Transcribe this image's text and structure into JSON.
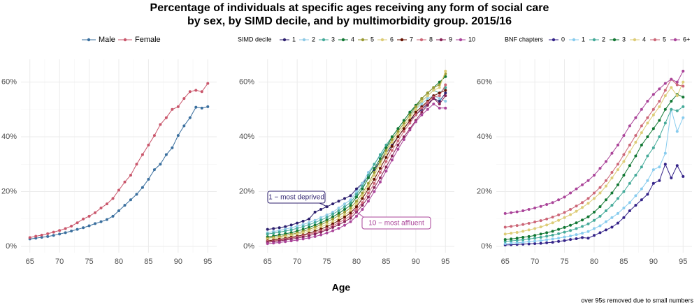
{
  "title": [
    "Percentage of individuals at specific ages receiving any form of social care",
    "by sex, by SIMD decile, and by multimorbidity group. 2015/16"
  ],
  "xlabel": "Age",
  "note": "over 95s removed due to small numbers",
  "chart_data": [
    {
      "type": "line",
      "x": [
        65,
        66,
        67,
        68,
        69,
        70,
        71,
        72,
        73,
        74,
        75,
        76,
        77,
        78,
        79,
        80,
        81,
        82,
        83,
        84,
        85,
        86,
        87,
        88,
        89,
        90,
        91,
        92,
        93,
        94,
        95
      ],
      "xlim": [
        63.5,
        96.5
      ],
      "xticks": [
        65,
        70,
        75,
        80,
        85,
        90,
        95
      ],
      "xticks_minor": [
        67.5,
        72.5,
        77.5,
        82.5,
        87.5,
        92.5
      ],
      "ylim": [
        -2.3,
        68.3
      ],
      "yticks": [
        {
          "value": 0,
          "label": "0%"
        },
        {
          "value": 20,
          "label": "20%"
        },
        {
          "value": 40,
          "label": "40%"
        },
        {
          "value": 60,
          "label": "60%"
        }
      ],
      "yticks_minor": [
        10,
        30,
        50
      ],
      "grid": true,
      "legend": "top",
      "series": [
        {
          "name": "Male",
          "color": "#3a6f9e",
          "values": [
            2.7,
            3,
            3.3,
            3.6,
            4,
            4.5,
            5,
            5.6,
            6.2,
            6.8,
            7.5,
            8.3,
            9,
            9.8,
            11,
            13,
            15,
            17,
            19,
            21.5,
            24.5,
            28,
            30,
            33.5,
            36,
            40.5,
            44,
            47,
            50.8,
            50.5,
            51
          ]
        },
        {
          "name": "Female",
          "color": "#c9566b",
          "values": [
            3.2,
            3.7,
            4.1,
            4.6,
            5.2,
            5.8,
            6.5,
            7.4,
            8.6,
            10,
            11,
            12.3,
            14,
            15.5,
            17.5,
            20.5,
            23.5,
            26,
            30,
            33.5,
            37,
            40.5,
            44.5,
            47,
            50,
            51,
            54,
            56.5,
            57,
            56.5,
            59.5
          ]
        }
      ]
    },
    {
      "type": "line",
      "x": [
        65,
        66,
        67,
        68,
        69,
        70,
        71,
        72,
        73,
        74,
        75,
        76,
        77,
        78,
        79,
        80,
        81,
        82,
        83,
        84,
        85,
        86,
        87,
        88,
        89,
        90,
        91,
        92,
        93,
        94,
        95
      ],
      "xlim": [
        63.5,
        96.5
      ],
      "xticks": [
        65,
        70,
        75,
        80,
        85,
        90,
        95
      ],
      "xticks_minor": [
        67.5,
        72.5,
        77.5,
        82.5,
        87.5,
        92.5
      ],
      "ylim": [
        -2.3,
        68.3
      ],
      "yticks": [
        {
          "value": 0,
          "label": "0%"
        },
        {
          "value": 20,
          "label": "20%"
        },
        {
          "value": 40,
          "label": "40%"
        },
        {
          "value": 60,
          "label": "60%"
        }
      ],
      "yticks_minor": [
        10,
        30,
        50
      ],
      "grid": true,
      "legend": "top",
      "legend_title": "SIMD decile",
      "annotations": [
        {
          "text": "1 − most deprived",
          "color": "#2c1f6e"
        },
        {
          "text": "10 − most affluent",
          "color": "#aa4499"
        }
      ],
      "series": [
        {
          "name": "1",
          "color": "#2c1f6e",
          "values": [
            6.2,
            6.5,
            6.8,
            7.2,
            7.8,
            8.5,
            9.2,
            10,
            12.5,
            13.5,
            14.5,
            15.5,
            16.5,
            17.5,
            18.5,
            21,
            23,
            25.5,
            28,
            31,
            34,
            37,
            40,
            43,
            46,
            48,
            50,
            52,
            54,
            53,
            56
          ]
        },
        {
          "name": "2",
          "color": "#8ecae6",
          "values": [
            5,
            5.4,
            5.8,
            6.3,
            6.8,
            7.4,
            8,
            8.7,
            9.5,
            10.5,
            11.5,
            12.5,
            14,
            15.5,
            17,
            20,
            23,
            27,
            30,
            33,
            36,
            39,
            42,
            45,
            48,
            50,
            52,
            54,
            55,
            54,
            53
          ]
        },
        {
          "name": "3",
          "color": "#44aa99",
          "values": [
            4.5,
            4.8,
            5.2,
            5.6,
            6,
            6.6,
            7.2,
            7.9,
            8.7,
            9.6,
            10.6,
            11.8,
            13,
            14.5,
            16,
            19,
            22,
            26,
            30,
            33.5,
            37,
            40,
            43,
            46,
            49,
            51,
            53,
            55,
            57,
            56,
            58
          ]
        },
        {
          "name": "4",
          "color": "#117733",
          "values": [
            3.5,
            3.8,
            4.2,
            4.6,
            5,
            5.6,
            6.2,
            6.9,
            7.7,
            8.6,
            9.6,
            10.8,
            12,
            13.5,
            15,
            18,
            21,
            25,
            28.5,
            32,
            36,
            40,
            43,
            46,
            49,
            51.5,
            54,
            56,
            58,
            60,
            62
          ]
        },
        {
          "name": "5",
          "color": "#999933",
          "values": [
            3,
            3.3,
            3.6,
            4,
            4.4,
            4.9,
            5.5,
            6.2,
            7,
            7.9,
            8.9,
            10,
            11.2,
            12.5,
            14,
            16.5,
            19.5,
            23,
            27,
            31,
            35,
            39,
            42,
            45,
            48,
            51,
            54,
            56,
            58,
            59,
            63
          ]
        },
        {
          "name": "6",
          "color": "#ddcc77",
          "values": [
            2.5,
            2.8,
            3.1,
            3.5,
            3.9,
            4.4,
            5,
            5.6,
            6.3,
            7.1,
            8,
            9,
            10.2,
            11.5,
            13,
            15.5,
            18.5,
            22,
            26,
            30,
            34,
            38,
            41,
            44,
            47,
            50,
            53,
            55,
            57,
            58,
            64
          ]
        },
        {
          "name": "7",
          "color": "#661100",
          "values": [
            2,
            2.3,
            2.6,
            2.9,
            3.3,
            3.7,
            4.2,
            4.8,
            5.5,
            6.3,
            7.2,
            8.2,
            9.4,
            10.7,
            12.2,
            14.5,
            17.5,
            21,
            24.5,
            28.5,
            32.5,
            36.5,
            40,
            43,
            46,
            49,
            51,
            53,
            55,
            56,
            57
          ]
        },
        {
          "name": "8",
          "color": "#cc6677",
          "values": [
            1.8,
            2,
            2.3,
            2.6,
            3,
            3.4,
            3.9,
            4.4,
            5,
            5.7,
            6.5,
            7.5,
            8.6,
            9.8,
            11.2,
            13.5,
            16,
            19.5,
            23,
            27,
            31,
            35,
            38.5,
            42,
            45,
            48,
            50.5,
            52.5,
            54.5,
            55,
            59
          ]
        },
        {
          "name": "9",
          "color": "#882255",
          "values": [
            1.5,
            1.7,
            2,
            2.3,
            2.6,
            3,
            3.4,
            3.9,
            4.5,
            5.2,
            6,
            6.9,
            7.9,
            9,
            10.3,
            12.5,
            15,
            18,
            21.5,
            25,
            29,
            33,
            37,
            40,
            43,
            46,
            49,
            51.5,
            54,
            52,
            55
          ]
        },
        {
          "name": "10",
          "color": "#aa4499",
          "values": [
            1,
            1.2,
            1.4,
            1.7,
            2,
            2.3,
            2.7,
            3.1,
            3.6,
            4.2,
            4.9,
            5.7,
            6.6,
            7.7,
            9,
            11,
            13.5,
            16.5,
            20,
            23.5,
            27.5,
            31.5,
            35.5,
            39,
            42.5,
            45.5,
            48,
            50,
            52,
            50.5,
            50.5
          ]
        }
      ]
    },
    {
      "type": "line",
      "x": [
        65,
        66,
        67,
        68,
        69,
        70,
        71,
        72,
        73,
        74,
        75,
        76,
        77,
        78,
        79,
        80,
        81,
        82,
        83,
        84,
        85,
        86,
        87,
        88,
        89,
        90,
        91,
        92,
        93,
        94,
        95
      ],
      "xlim": [
        63.5,
        96.5
      ],
      "xticks": [
        65,
        70,
        75,
        80,
        85,
        90,
        95
      ],
      "xticks_minor": [
        67.5,
        72.5,
        77.5,
        82.5,
        87.5,
        92.5
      ],
      "ylim": [
        -2.3,
        68.3
      ],
      "yticks": [
        {
          "value": 0,
          "label": "0%"
        },
        {
          "value": 20,
          "label": "20%"
        },
        {
          "value": 40,
          "label": "40%"
        },
        {
          "value": 60,
          "label": "60%"
        }
      ],
      "yticks_minor": [
        10,
        30,
        50
      ],
      "grid": true,
      "legend": "top",
      "legend_title": "BNF chapters",
      "series": [
        {
          "name": "0",
          "color": "#332288",
          "values": [
            0.5,
            0.6,
            0.7,
            0.8,
            0.9,
            1,
            1.1,
            1.3,
            1.5,
            1.8,
            2.1,
            2.5,
            2.8,
            3.2,
            3,
            4,
            5,
            6,
            7,
            8.5,
            10.5,
            13,
            15,
            17,
            19,
            23,
            24,
            30,
            25,
            29.5,
            25.5
          ]
        },
        {
          "name": "1",
          "color": "#88ccee",
          "values": [
            1,
            1.2,
            1.3,
            1.5,
            1.7,
            1.9,
            2.1,
            2.4,
            2.7,
            3,
            3.4,
            3.8,
            4.3,
            4.8,
            5.4,
            6.5,
            7.5,
            9,
            10.5,
            12,
            14,
            16,
            18.5,
            21,
            24,
            28,
            29,
            34,
            50,
            42,
            47
          ]
        },
        {
          "name": "2",
          "color": "#44aa99",
          "values": [
            1.8,
            2,
            2.2,
            2.4,
            2.7,
            3,
            3.3,
            3.7,
            4.1,
            4.6,
            5.2,
            5.8,
            6.5,
            7.3,
            8.2,
            9.5,
            11,
            13,
            15,
            17.5,
            20,
            23,
            26,
            29,
            33,
            36,
            40,
            45,
            50,
            49.5,
            51
          ]
        },
        {
          "name": "3",
          "color": "#117733",
          "values": [
            2.5,
            2.7,
            3,
            3.3,
            3.6,
            4,
            4.5,
            5,
            5.5,
            6.2,
            6.9,
            7.7,
            8.6,
            9.6,
            10.8,
            12.5,
            14.5,
            17,
            19.5,
            22.5,
            26,
            29.5,
            33,
            37,
            40,
            43,
            46,
            50,
            53,
            55.5,
            54.5
          ]
        },
        {
          "name": "4",
          "color": "#ddcc77",
          "values": [
            4.5,
            4.8,
            5.1,
            5.5,
            6,
            6.5,
            7.1,
            7.8,
            8.6,
            9.5,
            10.5,
            11.6,
            12.8,
            14.2,
            15.7,
            17.5,
            19.5,
            22,
            25,
            28,
            31,
            34.5,
            38,
            41.5,
            45,
            48,
            51,
            55,
            58,
            55,
            60
          ]
        },
        {
          "name": "5",
          "color": "#cc6677",
          "values": [
            7,
            7.3,
            7.6,
            8,
            8.4,
            8.9,
            9.4,
            10,
            10.7,
            11.5,
            12.4,
            13.5,
            14.7,
            16,
            17.5,
            19.5,
            21.5,
            24,
            27,
            30,
            33.5,
            37,
            40.5,
            44,
            47,
            50,
            53,
            57,
            61,
            59,
            58.5
          ]
        },
        {
          "name": "6+",
          "color": "#aa4499",
          "values": [
            12,
            12.3,
            12.6,
            13,
            13.5,
            14,
            14.6,
            15.3,
            16,
            17,
            18,
            19.5,
            21,
            22.5,
            24,
            26,
            28.5,
            31,
            34,
            37,
            40.5,
            44,
            47,
            50,
            53,
            55.5,
            57.5,
            59.5,
            61,
            60,
            64
          ]
        }
      ]
    }
  ]
}
